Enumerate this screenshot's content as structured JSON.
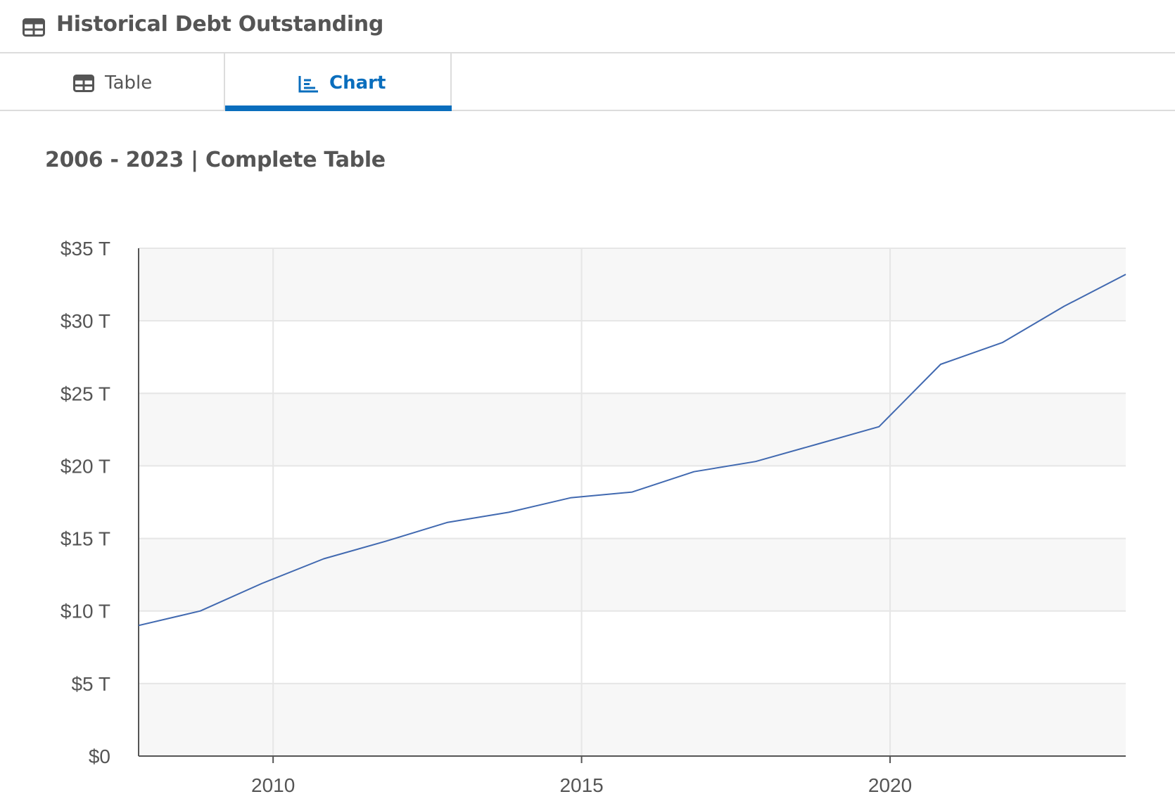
{
  "header": {
    "title": "Historical Debt Outstanding",
    "icon": "table-icon"
  },
  "tabs": [
    {
      "label": "Table",
      "icon": "table-icon",
      "active": false
    },
    {
      "label": "Chart",
      "icon": "line-chart-icon",
      "active": true
    }
  ],
  "colors": {
    "accent": "#0a6ebd",
    "line": "#4169b0",
    "plot_band": "#f7f7f7",
    "grid": "#e6e6e6",
    "text": "#555555"
  },
  "subtitle": "2006 - 2023 | Complete Table",
  "chart_data": {
    "type": "line",
    "title": "",
    "xlabel": "",
    "ylabel": "",
    "xlim": [
      2007.82,
      2023.82
    ],
    "ylim": [
      0,
      35
    ],
    "x_ticks": [
      {
        "value": 2010,
        "label": "2010"
      },
      {
        "value": 2015,
        "label": "2015"
      },
      {
        "value": 2020,
        "label": "2020"
      }
    ],
    "y_ticks": [
      {
        "value": 0,
        "label": "$0"
      },
      {
        "value": 5,
        "label": "$5 T"
      },
      {
        "value": 10,
        "label": "$10 T"
      },
      {
        "value": 15,
        "label": "$15 T"
      },
      {
        "value": 20,
        "label": "$20 T"
      },
      {
        "value": 25,
        "label": "$25 T"
      },
      {
        "value": 30,
        "label": "$30 T"
      },
      {
        "value": 35,
        "label": "$35 T"
      }
    ],
    "grid": true,
    "series": [
      {
        "x": [
          2007.82,
          2008.82,
          2009.82,
          2010.82,
          2011.82,
          2012.82,
          2013.82,
          2014.82,
          2015.82,
          2016.82,
          2017.82,
          2018.82,
          2019.82,
          2020.82,
          2021.82,
          2022.82,
          2023.82
        ],
        "values": [
          9.0,
          10.0,
          11.9,
          13.6,
          14.8,
          16.1,
          16.8,
          17.8,
          18.2,
          19.6,
          20.3,
          21.5,
          22.7,
          27.0,
          28.5,
          31.0,
          33.2
        ]
      }
    ]
  }
}
